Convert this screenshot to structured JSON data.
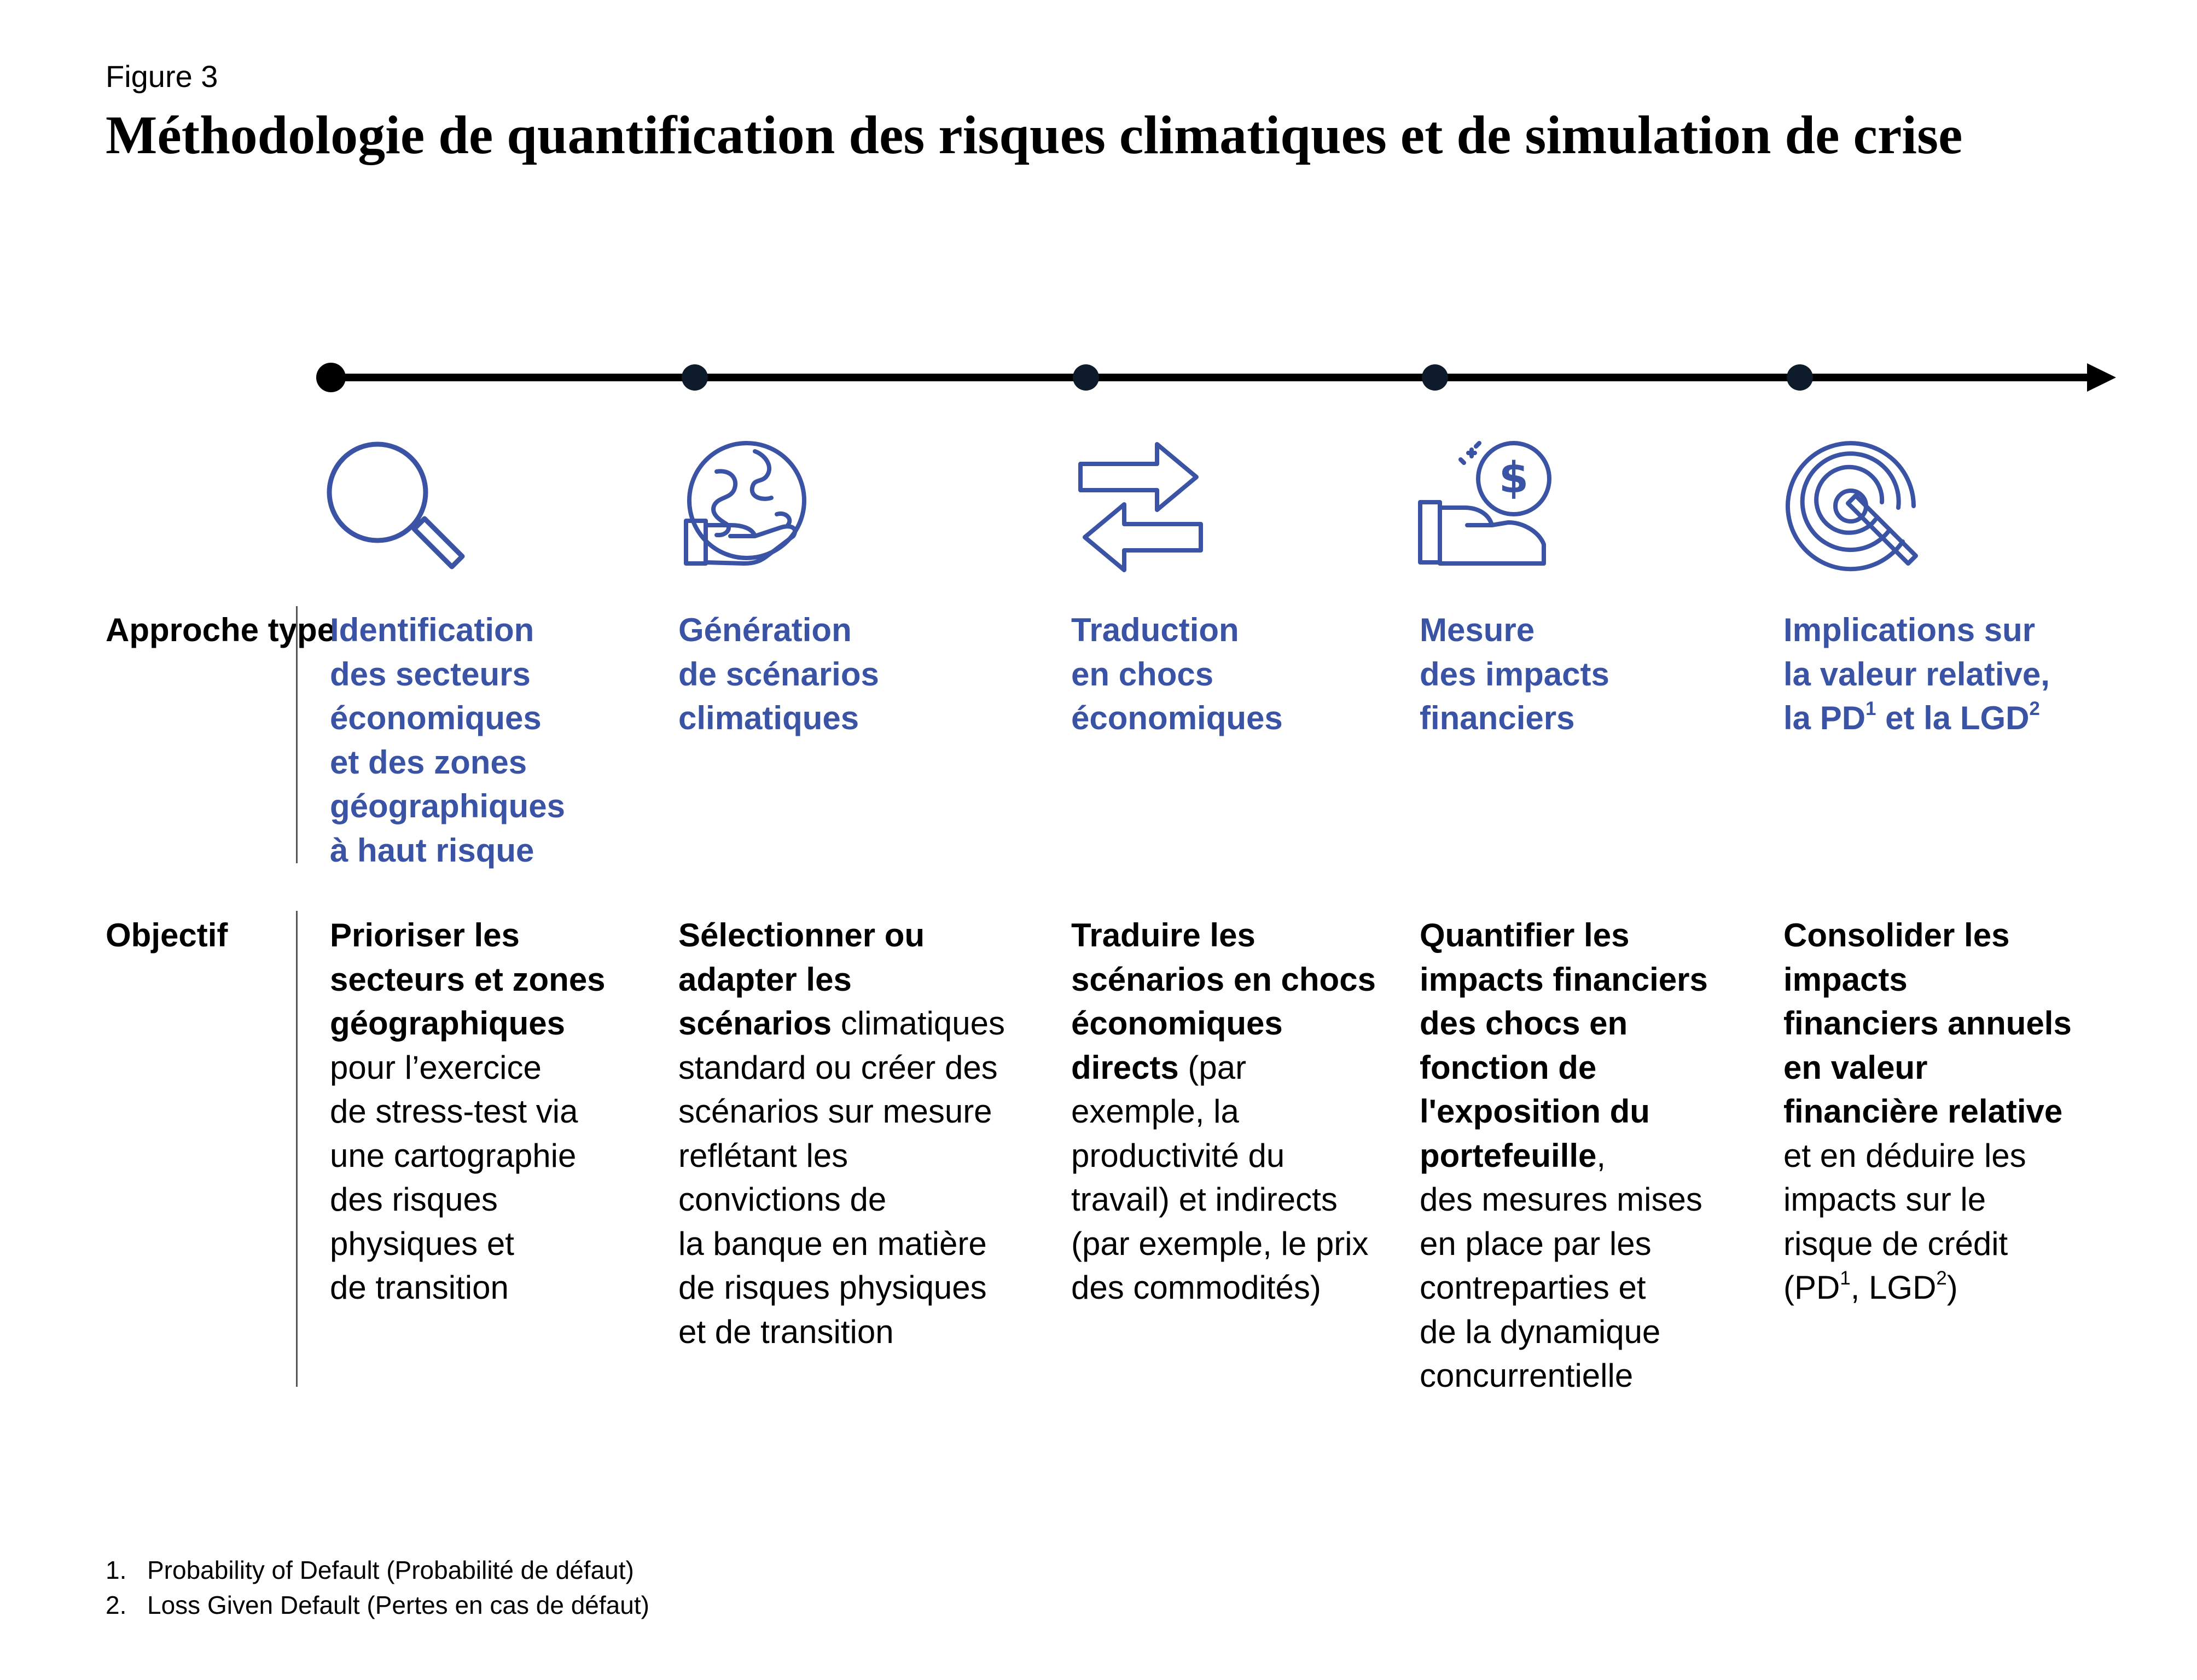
{
  "figure_label": "Figure 3",
  "title": "Méthodologie de quantification des risques climatiques et de simulation de crise",
  "colors": {
    "accent": "#3a53a4",
    "timeline": "#000000",
    "node": "#0d1b2a"
  },
  "row_labels": {
    "approach": "Approche type",
    "objective": "Objectif"
  },
  "steps": [
    {
      "icon": "magnifier-icon",
      "approach_text": "Identification des secteurs économiques et des zones géographiques à haut risque",
      "approach": [
        {
          "t": "Identification"
        },
        {
          "t": "des secteurs"
        },
        {
          "t": "économiques"
        },
        {
          "t": "et des zones"
        },
        {
          "t": "géographiques"
        },
        {
          "t": "à haut risque"
        }
      ],
      "objective_text": "Prioriser les secteurs et zones géographiques pour l’exercice de stress-test via une cartographie des risques physiques et de transition",
      "objective": [
        {
          "b": "Prioriser les"
        },
        {
          "b": "secteurs et zones"
        },
        {
          "b": "géographiques"
        },
        {
          "t": "pour l’exercice"
        },
        {
          "t": "de stress-test via"
        },
        {
          "t": "une cartographie"
        },
        {
          "t": "des risques"
        },
        {
          "t": "physiques et"
        },
        {
          "t": "de transition"
        }
      ]
    },
    {
      "icon": "globe-in-hand-icon",
      "approach_text": "Génération de scénarios climatiques",
      "approach": [
        {
          "t": "Génération"
        },
        {
          "t": "de scénarios"
        },
        {
          "t": "climatiques"
        }
      ],
      "objective_text": "Sélectionner ou adapter les scénarios climatiques standard ou créer des scénarios sur mesure reflétant les convictions de la banque en matière de risques physiques et de transition",
      "objective": [
        {
          "b": "Sélectionner ou"
        },
        {
          "b": "adapter les"
        },
        {
          "b": "scénarios",
          "t": " climatiques"
        },
        {
          "t": "standard ou créer des"
        },
        {
          "t": "scénarios sur mesure"
        },
        {
          "t": "reflétant les"
        },
        {
          "t": "convictions de"
        },
        {
          "t": "la banque en matière"
        },
        {
          "t": "de risques physiques"
        },
        {
          "t": "et de transition"
        }
      ]
    },
    {
      "icon": "exchange-arrows-icon",
      "approach_text": "Traduction en chocs économiques",
      "approach": [
        {
          "t": "Traduction"
        },
        {
          "t": "en chocs"
        },
        {
          "t": "économiques"
        }
      ],
      "objective_text": "Traduire les scénarios en chocs économiques directs (par exemple, la productivité du travail) et indirects (par exemple, le prix des commodités)",
      "objective": [
        {
          "b": "Traduire les"
        },
        {
          "b": "scénarios en chocs"
        },
        {
          "b": "économiques"
        },
        {
          "b": "directs",
          "t": " (par"
        },
        {
          "t": "exemple, la"
        },
        {
          "t": "productivité du"
        },
        {
          "t": "travail) et indirects"
        },
        {
          "t": "(par exemple, le prix"
        },
        {
          "t": "des commodités)"
        }
      ]
    },
    {
      "icon": "hand-coin-dollar-icon",
      "approach_text": "Mesure des impacts financiers",
      "approach": [
        {
          "t": "Mesure"
        },
        {
          "t": "des impacts"
        },
        {
          "t": "financiers"
        }
      ],
      "objective_text": "Quantifier les impacts financiers des chocs en fonction de l'exposition du portefeuille, des mesures mises en place par les contreparties et de la dynamique concurrentielle",
      "objective": [
        {
          "b": "Quantifier les"
        },
        {
          "b": "impacts financiers"
        },
        {
          "b": "des chocs en"
        },
        {
          "b": "fonction de"
        },
        {
          "b": "l'exposition du"
        },
        {
          "b": "portefeuille",
          "t": ","
        },
        {
          "t": "des mesures mises"
        },
        {
          "t": "en place par les"
        },
        {
          "t": "contreparties et"
        },
        {
          "t": "de la dynamique"
        },
        {
          "t": "concurrentielle"
        }
      ]
    },
    {
      "icon": "target-icon",
      "approach_text": "Implications sur la valeur relative, la PD1 et la LGD2",
      "approach": [
        {
          "t": "Implications sur"
        },
        {
          "t": "la valeur relative,"
        },
        {
          "t": "la PD",
          "sup": "1",
          "t2": " et la LGD",
          "sup2": "2"
        }
      ],
      "objective_text": "Consolider les impacts financiers annuels en valeur financière relative et en déduire les impacts sur le risque de crédit (PD1, LGD2)",
      "objective": [
        {
          "b": "Consolider les"
        },
        {
          "b": "impacts"
        },
        {
          "b": "financiers annuels"
        },
        {
          "b": "en valeur"
        },
        {
          "b": "financière relative"
        },
        {
          "t": "et en déduire les"
        },
        {
          "t": "impacts sur le"
        },
        {
          "t": "risque de crédit"
        },
        {
          "t": "(PD",
          "sup": "1",
          "t2": ", LGD",
          "sup2": "2",
          "t3": ")"
        }
      ]
    }
  ],
  "footnotes": [
    {
      "num": "1.",
      "text": "Probability of Default (Probabilité de défaut)"
    },
    {
      "num": "2.",
      "text": "Loss Given Default (Pertes en cas de défaut)"
    }
  ]
}
